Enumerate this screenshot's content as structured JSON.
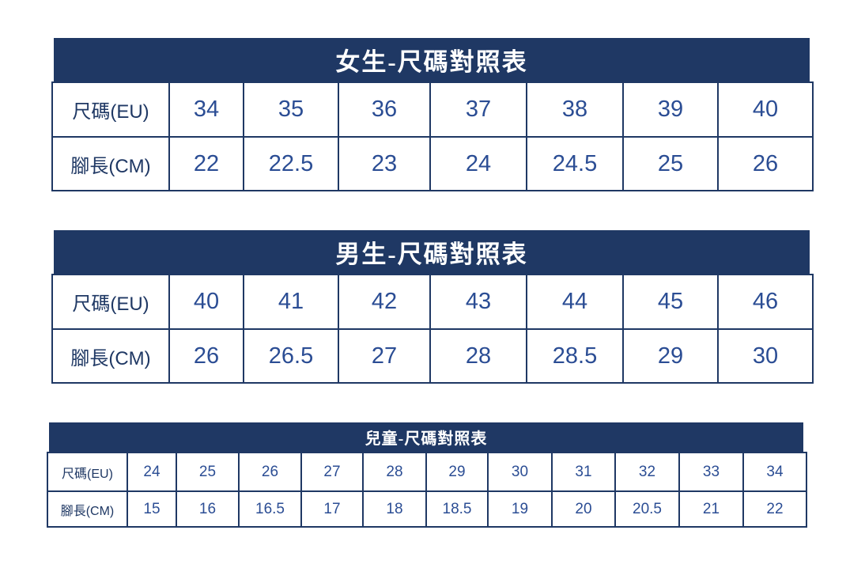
{
  "colors": {
    "header_bg": "#1F3864",
    "grid_border": "#1F3864",
    "value_text": "#2B4D94",
    "label_text": "#1F3864",
    "title_text": "#FFFFFF",
    "page_bg": "#FFFFFF"
  },
  "tables": [
    {
      "id": "women",
      "title": "女生-尺碼對照表",
      "rows": [
        {
          "label": "尺碼(EU)",
          "values": [
            "34",
            "35",
            "36",
            "37",
            "38",
            "39",
            "40"
          ]
        },
        {
          "label": "腳長(CM)",
          "values": [
            "22",
            "22.5",
            "23",
            "24",
            "24.5",
            "25",
            "26"
          ]
        }
      ]
    },
    {
      "id": "men",
      "title": "男生-尺碼對照表",
      "rows": [
        {
          "label": "尺碼(EU)",
          "values": [
            "40",
            "41",
            "42",
            "43",
            "44",
            "45",
            "46"
          ]
        },
        {
          "label": "腳長(CM)",
          "values": [
            "26",
            "26.5",
            "27",
            "28",
            "28.5",
            "29",
            "30"
          ]
        }
      ]
    },
    {
      "id": "kids",
      "title": "兒童-尺碼對照表",
      "rows": [
        {
          "label": "尺碼(EU)",
          "values": [
            "24",
            "25",
            "26",
            "27",
            "28",
            "29",
            "30",
            "31",
            "32",
            "33",
            "34"
          ]
        },
        {
          "label": "腳長(CM)",
          "values": [
            "15",
            "16",
            "16.5",
            "17",
            "18",
            "18.5",
            "19",
            "20",
            "20.5",
            "21",
            "22"
          ]
        }
      ]
    }
  ]
}
